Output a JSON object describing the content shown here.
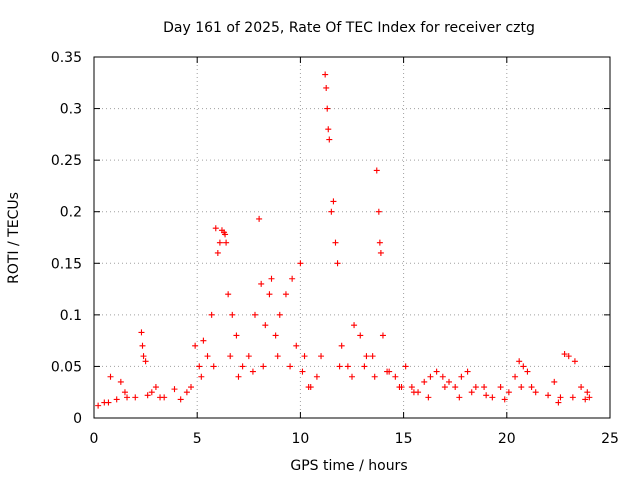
{
  "chart_data": {
    "type": "scatter",
    "title": "Day 161 of 2025, Rate Of TEC Index for receiver cztg",
    "xlabel": "GPS time / hours",
    "ylabel": "ROTI / TECUs",
    "xlim": [
      0,
      25
    ],
    "ylim": [
      0,
      0.35
    ],
    "x_ticks": [
      "0",
      "5",
      "10",
      "15",
      "20",
      "25"
    ],
    "y_ticks": [
      "0",
      "0.05",
      "0.1",
      "0.15",
      "0.2",
      "0.25",
      "0.3",
      "0.35"
    ],
    "grid": true,
    "marker": "plus",
    "color": "#ff0000",
    "series": [
      {
        "x": [
          0.2,
          0.5,
          0.8,
          1.1,
          1.3,
          1.6,
          2.0,
          2.3,
          2.35,
          2.4,
          2.5,
          2.6,
          2.8,
          3.0,
          3.4,
          3.9,
          4.5,
          4.9,
          5.1,
          5.3,
          5.5,
          5.7,
          5.9,
          6.0,
          6.1,
          6.2,
          6.3,
          6.35,
          6.4,
          6.5,
          6.7,
          6.9,
          7.2,
          7.5,
          7.8,
          8.0,
          8.1,
          8.3,
          8.5,
          8.6,
          8.8,
          9.0,
          9.3,
          9.6,
          9.8,
          10.0,
          10.2,
          10.5,
          10.8,
          11.0,
          11.2,
          11.25,
          11.3,
          11.35,
          11.4,
          11.5,
          11.6,
          11.7,
          11.8,
          12.0,
          12.3,
          12.6,
          12.9,
          13.2,
          13.5,
          13.7,
          13.8,
          13.85,
          13.9,
          14.0,
          14.3,
          14.6,
          14.9,
          15.1,
          15.4,
          15.7,
          16.0,
          16.3,
          16.6,
          16.9,
          17.2,
          17.5,
          17.8,
          18.1,
          18.5,
          18.9,
          19.3,
          19.7,
          20.1,
          20.4,
          20.6,
          20.8,
          21.0,
          21.2,
          22.0,
          22.3,
          22.6,
          22.8,
          23.0,
          23.3,
          23.6,
          23.9,
          24.0,
          0.7,
          1.5,
          3.2,
          4.2,
          4.7,
          5.2,
          5.8,
          6.6,
          7.0,
          7.7,
          8.2,
          8.9,
          9.5,
          10.1,
          10.4,
          11.9,
          12.5,
          13.1,
          13.6,
          14.2,
          14.8,
          15.5,
          16.2,
          17.0,
          17.7,
          18.3,
          19.0,
          19.9,
          20.7,
          21.4,
          22.5,
          23.2,
          23.8
        ],
        "y": [
          0.012,
          0.015,
          0.04,
          0.018,
          0.035,
          0.02,
          0.02,
          0.083,
          0.07,
          0.06,
          0.055,
          0.022,
          0.025,
          0.03,
          0.02,
          0.028,
          0.025,
          0.07,
          0.05,
          0.075,
          0.06,
          0.1,
          0.184,
          0.16,
          0.17,
          0.182,
          0.18,
          0.178,
          0.17,
          0.12,
          0.1,
          0.08,
          0.05,
          0.06,
          0.1,
          0.193,
          0.13,
          0.09,
          0.12,
          0.135,
          0.08,
          0.1,
          0.12,
          0.135,
          0.07,
          0.15,
          0.06,
          0.03,
          0.04,
          0.06,
          0.333,
          0.32,
          0.3,
          0.28,
          0.27,
          0.2,
          0.21,
          0.17,
          0.15,
          0.07,
          0.05,
          0.09,
          0.08,
          0.06,
          0.06,
          0.24,
          0.2,
          0.17,
          0.16,
          0.08,
          0.045,
          0.04,
          0.03,
          0.05,
          0.03,
          0.025,
          0.035,
          0.04,
          0.045,
          0.04,
          0.035,
          0.03,
          0.04,
          0.045,
          0.03,
          0.03,
          0.02,
          0.03,
          0.025,
          0.04,
          0.055,
          0.05,
          0.045,
          0.03,
          0.022,
          0.035,
          0.02,
          0.062,
          0.06,
          0.055,
          0.03,
          0.025,
          0.02,
          0.015,
          0.025,
          0.02,
          0.018,
          0.03,
          0.04,
          0.05,
          0.06,
          0.04,
          0.045,
          0.05,
          0.06,
          0.05,
          0.045,
          0.03,
          0.05,
          0.04,
          0.05,
          0.04,
          0.045,
          0.03,
          0.025,
          0.02,
          0.03,
          0.02,
          0.025,
          0.022,
          0.018,
          0.03,
          0.025,
          0.015,
          0.02,
          0.018
        ]
      }
    ]
  }
}
